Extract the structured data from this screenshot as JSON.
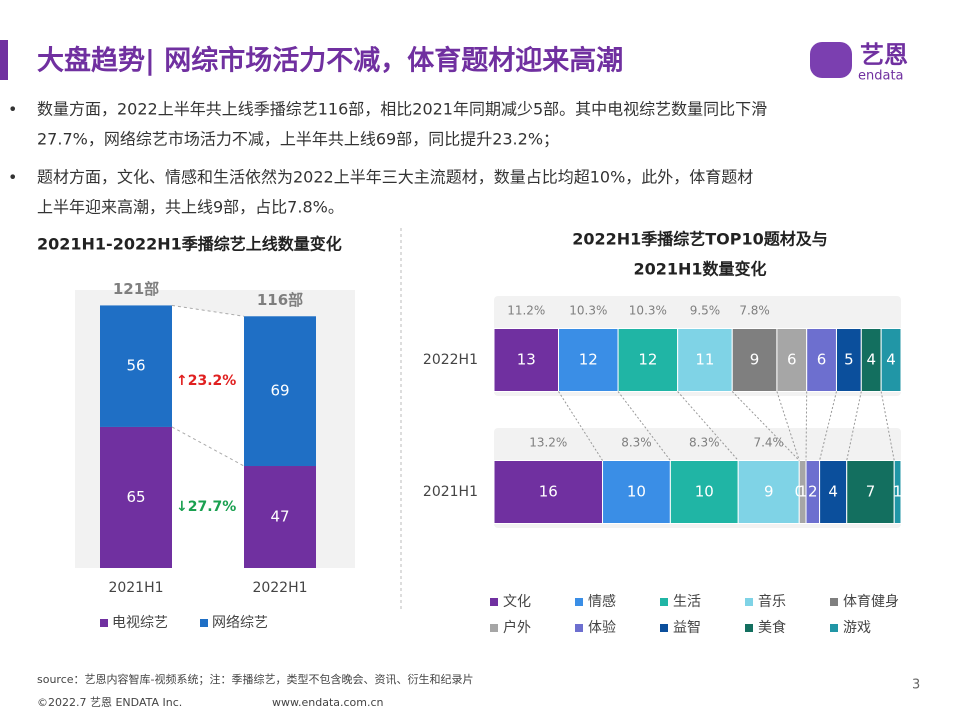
{
  "header": {
    "title": "大盘趋势| 网综市场活力不减，体育题材迎来高潮",
    "logo": "艺恩",
    "logo_sub": "endata"
  },
  "bullets": [
    [
      "数量方面，2022上半年共上线季播综艺116部，相比2021年同期减少5部。其中电视综艺数量同比下滑",
      "27.7%，网络综艺市场活力不减，上半年共上线69部，同比提升23.2%；"
    ],
    [
      "题材方面，文化、情感和生活依然为2022上半年三大主流题材，数量占比均超10%，此外，体育题材",
      "上半年迎来高潮，共上线9部，占比7.8%。"
    ]
  ],
  "chart_data": [
    {
      "type": "bar",
      "stacked": true,
      "title": "2021H1-2022H1季播综艺上线数量变化",
      "categories": [
        "2021H1",
        "2022H1"
      ],
      "total_labels": [
        "121部",
        "116部"
      ],
      "series": [
        {
          "name": "电视综艺",
          "color": "#7030a0",
          "values": [
            65,
            47
          ]
        },
        {
          "name": "网络综艺",
          "color": "#1f6fc5",
          "values": [
            56,
            69
          ]
        }
      ],
      "annotations": [
        {
          "text": "↑23.2%",
          "color": "#e02020"
        },
        {
          "text": "↓27.7%",
          "color": "#1aa050"
        }
      ],
      "legend": "bottom"
    },
    {
      "type": "bar",
      "stacked": true,
      "horizontal": true,
      "normalized": true,
      "title": [
        "2022H1季播综艺TOP10题材及与",
        "2021H1数量变化"
      ],
      "categories": [
        "2022H1",
        "2021H1"
      ],
      "series": [
        {
          "name": "文化",
          "color": "#7030a0",
          "values": [
            13,
            16
          ],
          "share_labels": [
            "11.2%",
            "13.2%"
          ]
        },
        {
          "name": "情感",
          "color": "#3a8ee6",
          "values": [
            12,
            10
          ],
          "share_labels": [
            "10.3%",
            "8.3%"
          ]
        },
        {
          "name": "生活",
          "color": "#20b5a5",
          "values": [
            12,
            10
          ],
          "share_labels": [
            "10.3%",
            "8.3%"
          ]
        },
        {
          "name": "音乐",
          "color": "#7fd3e6",
          "values": [
            11,
            9
          ],
          "share_labels": [
            "9.5%",
            "7.4%"
          ]
        },
        {
          "name": "体育健身",
          "color": "#7f7f7f",
          "values": [
            9,
            0
          ],
          "share_labels": [
            "7.8%",
            null
          ]
        },
        {
          "name": "户外",
          "color": "#a6a6a6",
          "values": [
            6,
            1
          ],
          "share_labels": [
            null,
            null
          ]
        },
        {
          "name": "体验",
          "color": "#6d6fcf",
          "values": [
            6,
            2
          ],
          "share_labels": [
            null,
            null
          ]
        },
        {
          "name": "益智",
          "color": "#0b4f9c",
          "values": [
            5,
            4
          ],
          "share_labels": [
            null,
            null
          ]
        },
        {
          "name": "美食",
          "color": "#136f5f",
          "values": [
            4,
            7
          ],
          "share_labels": [
            null,
            null
          ]
        },
        {
          "name": "游戏",
          "color": "#2196a6",
          "values": [
            4,
            1
          ],
          "share_labels": [
            null,
            null
          ]
        }
      ],
      "legend": "bottom"
    }
  ],
  "footer": {
    "source": "source：艺恩内容智库-视频系统；注：季播综艺，类型不包含晚会、资讯、衍生和纪录片",
    "page": "3",
    "copyright": "©2022.7 艺恩 ENDATA Inc.",
    "website": "www.endata.com.cn"
  }
}
